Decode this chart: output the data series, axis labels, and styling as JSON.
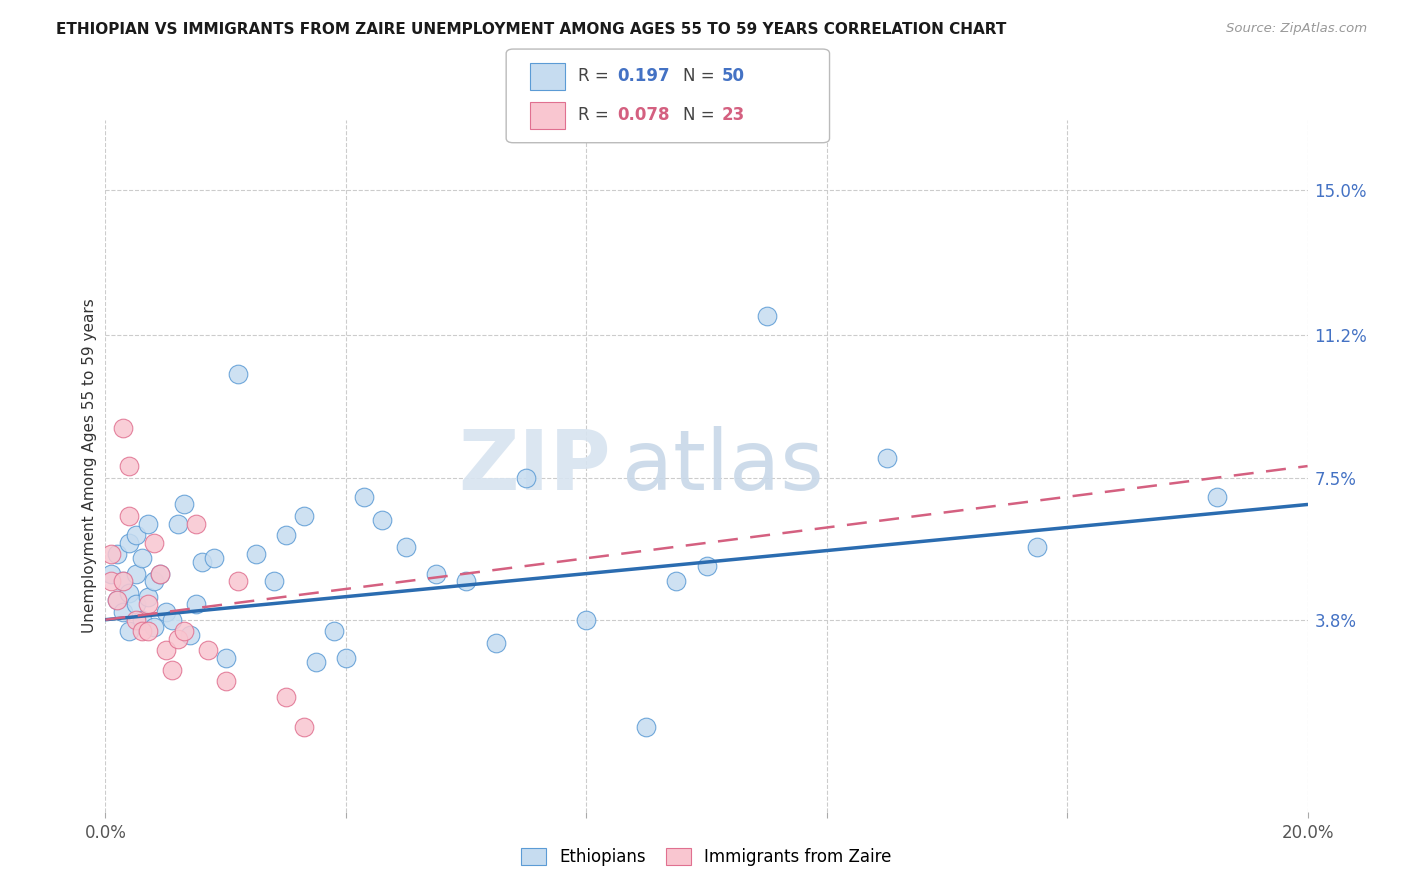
{
  "title": "ETHIOPIAN VS IMMIGRANTS FROM ZAIRE UNEMPLOYMENT AMONG AGES 55 TO 59 YEARS CORRELATION CHART",
  "source": "Source: ZipAtlas.com",
  "ylabel": "Unemployment Among Ages 55 to 59 years",
  "xlim": [
    0.0,
    0.2
  ],
  "ylim": [
    -0.012,
    0.168
  ],
  "xticks": [
    0.0,
    0.04,
    0.08,
    0.12,
    0.16,
    0.2
  ],
  "xtick_labels": [
    "0.0%",
    "",
    "",
    "",
    "",
    "20.0%"
  ],
  "ytick_values_right": [
    0.038,
    0.075,
    0.112,
    0.15
  ],
  "ytick_labels_right": [
    "3.8%",
    "7.5%",
    "11.2%",
    "15.0%"
  ],
  "watermark_zip": "ZIP",
  "watermark_atlas": "atlas",
  "blue_R": 0.197,
  "blue_N": 50,
  "pink_R": 0.078,
  "pink_N": 23,
  "legend_label_blue": "Ethiopians",
  "legend_label_pink": "Immigrants from Zaire",
  "blue_fill_color": "#c6dcf0",
  "blue_edge_color": "#5b9bd5",
  "pink_fill_color": "#f9c6d0",
  "pink_edge_color": "#e07090",
  "blue_line_color": "#2b6cb0",
  "pink_line_color": "#d46080",
  "background_color": "#ffffff",
  "blue_line_y0": 0.038,
  "blue_line_y1": 0.068,
  "pink_line_y0": 0.038,
  "pink_line_y1": 0.078,
  "blue_x": [
    0.001,
    0.002,
    0.002,
    0.003,
    0.003,
    0.004,
    0.004,
    0.004,
    0.005,
    0.005,
    0.005,
    0.006,
    0.006,
    0.007,
    0.007,
    0.008,
    0.008,
    0.009,
    0.01,
    0.011,
    0.012,
    0.013,
    0.014,
    0.015,
    0.016,
    0.018,
    0.02,
    0.022,
    0.025,
    0.028,
    0.03,
    0.033,
    0.035,
    0.038,
    0.04,
    0.043,
    0.046,
    0.05,
    0.055,
    0.06,
    0.065,
    0.07,
    0.08,
    0.09,
    0.095,
    0.1,
    0.11,
    0.13,
    0.155,
    0.185
  ],
  "blue_y": [
    0.05,
    0.055,
    0.043,
    0.048,
    0.04,
    0.045,
    0.058,
    0.035,
    0.042,
    0.06,
    0.05,
    0.038,
    0.054,
    0.063,
    0.044,
    0.036,
    0.048,
    0.05,
    0.04,
    0.038,
    0.063,
    0.068,
    0.034,
    0.042,
    0.053,
    0.054,
    0.028,
    0.102,
    0.055,
    0.048,
    0.06,
    0.065,
    0.027,
    0.035,
    0.028,
    0.07,
    0.064,
    0.057,
    0.05,
    0.048,
    0.032,
    0.075,
    0.038,
    0.01,
    0.048,
    0.052,
    0.117,
    0.08,
    0.057,
    0.07
  ],
  "pink_x": [
    0.001,
    0.001,
    0.002,
    0.003,
    0.003,
    0.004,
    0.004,
    0.005,
    0.006,
    0.007,
    0.007,
    0.008,
    0.009,
    0.01,
    0.011,
    0.012,
    0.013,
    0.015,
    0.017,
    0.02,
    0.022,
    0.03,
    0.033
  ],
  "pink_y": [
    0.048,
    0.055,
    0.043,
    0.088,
    0.048,
    0.078,
    0.065,
    0.038,
    0.035,
    0.042,
    0.035,
    0.058,
    0.05,
    0.03,
    0.025,
    0.033,
    0.035,
    0.063,
    0.03,
    0.022,
    0.048,
    0.018,
    0.01
  ]
}
